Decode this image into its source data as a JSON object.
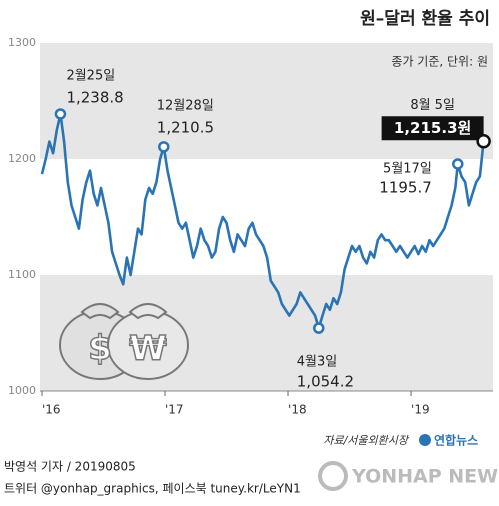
{
  "chart_data": {
    "type": "line",
    "title": "원–달러 환율 추이",
    "subtitle": "종가 기준, 단위: 원",
    "source": "자료/서울외환시장",
    "xlim": [
      2016,
      2019.65
    ],
    "xticks": [
      {
        "value": 2016,
        "label": "'16"
      },
      {
        "value": 2017,
        "label": "'17"
      },
      {
        "value": 2018,
        "label": "'18"
      },
      {
        "value": 2019,
        "label": "'19"
      }
    ],
    "ylim": [
      1000,
      1300
    ],
    "yticks": [
      1000,
      1100,
      1200,
      1300
    ],
    "grid": "bands",
    "series": [
      {
        "color": "#2a74b5",
        "x": [
          2016.0,
          2016.03,
          2016.06,
          2016.09,
          2016.12,
          2016.15,
          2016.18,
          2016.21,
          2016.24,
          2016.27,
          2016.3,
          2016.33,
          2016.36,
          2016.39,
          2016.42,
          2016.45,
          2016.48,
          2016.51,
          2016.54,
          2016.57,
          2016.6,
          2016.63,
          2016.66,
          2016.69,
          2016.72,
          2016.75,
          2016.78,
          2016.81,
          2016.84,
          2016.87,
          2016.9,
          2016.93,
          2016.96,
          2016.99,
          2017.02,
          2017.05,
          2017.08,
          2017.11,
          2017.14,
          2017.17,
          2017.2,
          2017.23,
          2017.26,
          2017.29,
          2017.32,
          2017.35,
          2017.38,
          2017.41,
          2017.44,
          2017.47,
          2017.5,
          2017.53,
          2017.56,
          2017.59,
          2017.62,
          2017.65,
          2017.68,
          2017.71,
          2017.74,
          2017.77,
          2017.8,
          2017.83,
          2017.86,
          2017.89,
          2017.92,
          2017.95,
          2017.98,
          2018.01,
          2018.04,
          2018.07,
          2018.1,
          2018.13,
          2018.16,
          2018.19,
          2018.22,
          2018.25,
          2018.28,
          2018.31,
          2018.34,
          2018.37,
          2018.4,
          2018.43,
          2018.46,
          2018.49,
          2018.52,
          2018.55,
          2018.58,
          2018.61,
          2018.64,
          2018.67,
          2018.7,
          2018.73,
          2018.76,
          2018.79,
          2018.82,
          2018.85,
          2018.88,
          2018.91,
          2018.94,
          2018.97,
          2019.0,
          2019.03,
          2019.06,
          2019.09,
          2019.12,
          2019.15,
          2019.18,
          2019.21,
          2019.24,
          2019.27,
          2019.3,
          2019.33,
          2019.36,
          2019.38,
          2019.41,
          2019.44,
          2019.47,
          2019.5,
          2019.53,
          2019.56,
          2019.59
        ],
        "values": [
          1187,
          1200,
          1215,
          1205,
          1225,
          1238.8,
          1215,
          1180,
          1160,
          1150,
          1140,
          1165,
          1180,
          1190,
          1170,
          1160,
          1175,
          1160,
          1145,
          1120,
          1110,
          1100,
          1092,
          1115,
          1100,
          1120,
          1140,
          1135,
          1165,
          1175,
          1170,
          1180,
          1200,
          1210.5,
          1190,
          1175,
          1160,
          1145,
          1140,
          1145,
          1130,
          1115,
          1125,
          1140,
          1130,
          1125,
          1115,
          1120,
          1140,
          1150,
          1145,
          1130,
          1120,
          1135,
          1130,
          1125,
          1140,
          1145,
          1135,
          1130,
          1125,
          1115,
          1095,
          1090,
          1085,
          1075,
          1070,
          1065,
          1070,
          1075,
          1085,
          1080,
          1075,
          1070,
          1065,
          1054.2,
          1065,
          1075,
          1070,
          1080,
          1075,
          1085,
          1105,
          1115,
          1125,
          1120,
          1125,
          1115,
          1110,
          1120,
          1115,
          1130,
          1135,
          1130,
          1130,
          1125,
          1120,
          1125,
          1120,
          1115,
          1120,
          1125,
          1118,
          1125,
          1120,
          1130,
          1125,
          1130,
          1135,
          1140,
          1150,
          1160,
          1175,
          1195.7,
          1185,
          1180,
          1160,
          1170,
          1180,
          1185,
          1215.3
        ]
      }
    ],
    "annotations": [
      {
        "date": "2월25일",
        "x": 2016.15,
        "value": 1238.8,
        "label": "1,238.8"
      },
      {
        "date": "12월28일",
        "x": 2016.99,
        "value": 1210.5,
        "label": "1,210.5"
      },
      {
        "date": "4월3일",
        "x": 2018.25,
        "value": 1054.2,
        "label": "1,054.2"
      },
      {
        "date": "5월17일",
        "x": 2019.38,
        "value": 1195.7,
        "label": "1195.7"
      },
      {
        "date": "8월 5일",
        "x": 2019.59,
        "value": 1215.3,
        "label": "1,215.3원"
      }
    ]
  },
  "illustration": {
    "symbols": [
      "$",
      "₩"
    ]
  },
  "logo": "연합뉴스",
  "credit": "박영석 기자 / 20190805",
  "social": "트위터 @yonhap_graphics, 페이스북 tuney.kr/LeYN1",
  "watermark": "YONHAP NEWS"
}
